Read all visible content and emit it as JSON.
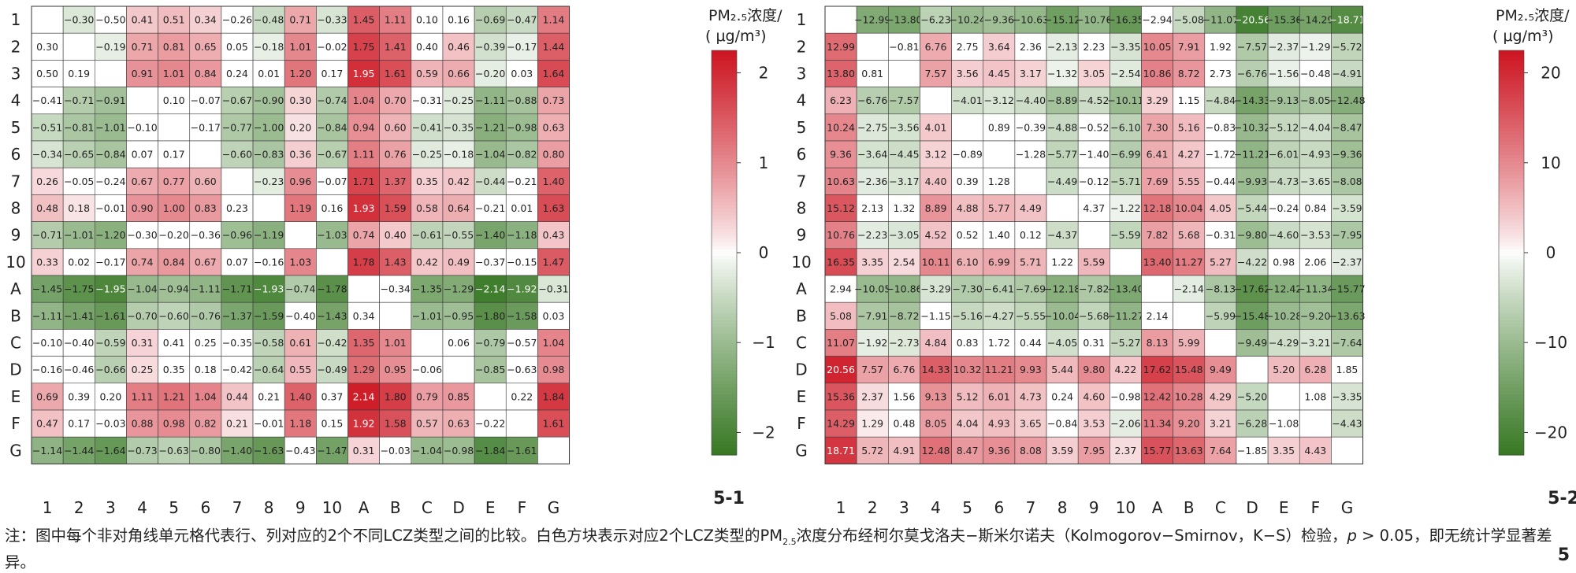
{
  "chart_data": [
    {
      "type": "heatmap",
      "panel_label": "5-1",
      "legend_title": [
        "PM₂.₅浓度/",
        "( μg/m³)"
      ],
      "color_range": [
        -2.25,
        2.25
      ],
      "ticks": [
        "−2",
        "−1",
        "0",
        "1",
        "2"
      ],
      "tick_values": [
        -2,
        -1,
        0,
        1,
        2
      ],
      "row_labels": [
        "1",
        "2",
        "3",
        "4",
        "5",
        "6",
        "7",
        "8",
        "9",
        "10",
        "A",
        "B",
        "C",
        "D",
        "E",
        "F",
        "G"
      ],
      "col_labels": [
        "1",
        "2",
        "3",
        "4",
        "5",
        "6",
        "7",
        "8",
        "9",
        "10",
        "A",
        "B",
        "C",
        "D",
        "E",
        "F",
        "G"
      ],
      "grid_on": true,
      "legend_placement": "right",
      "cells": [
        [
          "",
          "-0.30",
          "-0.50",
          "0.41",
          "0.51",
          "0.34",
          "-0.26",
          "-0.48",
          "0.71",
          "-0.33",
          "1.45",
          "1.11",
          "0.10",
          "0.16",
          "-0.69",
          "-0.47",
          "1.14"
        ],
        [
          "0.30",
          "",
          "-0.19",
          "0.71",
          "0.81",
          "0.65",
          "0.05",
          "-0.18",
          "1.01",
          "-0.02",
          "1.75",
          "1.41",
          "0.40",
          "0.46",
          "-0.39",
          "-0.17",
          "1.44"
        ],
        [
          "0.50",
          "0.19",
          "",
          "0.91",
          "1.01",
          "0.84",
          "0.24",
          "0.01",
          "1.20",
          "0.17",
          "1.95",
          "1.61",
          "0.59",
          "0.66",
          "-0.20",
          "0.03",
          "1.64"
        ],
        [
          "-0.41",
          "-0.71",
          "-0.91",
          "",
          "0.10",
          "-0.07",
          "-0.67",
          "-0.90",
          "0.30",
          "-0.74",
          "1.04",
          "0.70",
          "-0.31",
          "-0.25",
          "-1.11",
          "-0.88",
          "0.73"
        ],
        [
          "-0.51",
          "-0.81",
          "-1.01",
          "-0.10",
          "",
          "-0.17",
          "-0.77",
          "-1.00",
          "0.20",
          "-0.84",
          "0.94",
          "0.60",
          "-0.41",
          "-0.35",
          "-1.21",
          "-0.98",
          "0.63"
        ],
        [
          "-0.34",
          "-0.65",
          "-0.84",
          "0.07",
          "0.17",
          "",
          "-0.60",
          "-0.83",
          "0.36",
          "-0.67",
          "1.11",
          "0.76",
          "-0.25",
          "-0.18",
          "-1.04",
          "-0.82",
          "0.80"
        ],
        [
          "0.26",
          "-0.05",
          "-0.24",
          "0.67",
          "0.77",
          "0.60",
          "",
          "-0.23",
          "0.96",
          "-0.07",
          "1.71",
          "1.37",
          "0.35",
          "0.42",
          "-0.44",
          "-0.21",
          "1.40"
        ],
        [
          "0.48",
          "0.18",
          "-0.01",
          "0.90",
          "1.00",
          "0.83",
          "0.23",
          "",
          "1.19",
          "0.16",
          "1.93",
          "1.59",
          "0.58",
          "0.64",
          "-0.21",
          "0.01",
          "1.63"
        ],
        [
          "-0.71",
          "-1.01",
          "-1.20",
          "-0.30",
          "-0.20",
          "-0.36",
          "-0.96",
          "-1.19",
          "",
          "-1.03",
          "0.74",
          "0.40",
          "-0.61",
          "-0.55",
          "-1.40",
          "-1.18",
          "0.43"
        ],
        [
          "0.33",
          "0.02",
          "-0.17",
          "0.74",
          "0.84",
          "0.67",
          "0.07",
          "-0.16",
          "1.03",
          "",
          "1.78",
          "1.43",
          "0.42",
          "0.49",
          "-0.37",
          "-0.15",
          "1.47"
        ],
        [
          "-1.45",
          "-1.75",
          "-1.95",
          "-1.04",
          "-0.94",
          "-1.11",
          "-1.71",
          "-1.93",
          "-0.74",
          "-1.78",
          "",
          "-0.34",
          "-1.35",
          "-1.29",
          "-2.14",
          "-1.92",
          "-0.31"
        ],
        [
          "-1.11",
          "-1.41",
          "-1.61",
          "-0.70",
          "-0.60",
          "-0.76",
          "-1.37",
          "-1.59",
          "-0.40",
          "-1.43",
          "0.34",
          "",
          "-1.01",
          "-0.95",
          "-1.80",
          "-1.58",
          "0.03"
        ],
        [
          "-0.10",
          "-0.40",
          "-0.59",
          "0.31",
          "0.41",
          "0.25",
          "-0.35",
          "-0.58",
          "0.61",
          "-0.42",
          "1.35",
          "1.01",
          "",
          "0.06",
          "-0.79",
          "-0.57",
          "1.04"
        ],
        [
          "-0.16",
          "-0.46",
          "-0.66",
          "0.25",
          "0.35",
          "0.18",
          "-0.42",
          "-0.64",
          "0.55",
          "-0.49",
          "1.29",
          "0.95",
          "-0.06",
          "",
          "-0.85",
          "-0.63",
          "0.98"
        ],
        [
          "0.69",
          "0.39",
          "0.20",
          "1.11",
          "1.21",
          "1.04",
          "0.44",
          "0.21",
          "1.40",
          "0.37",
          "2.14",
          "1.80",
          "0.79",
          "0.85",
          "",
          "0.22",
          "1.84"
        ],
        [
          "0.47",
          "0.17",
          "-0.03",
          "0.88",
          "0.98",
          "0.82",
          "0.21",
          "-0.01",
          "1.18",
          "0.15",
          "1.92",
          "1.58",
          "0.57",
          "0.63",
          "-0.22",
          "",
          "1.61"
        ],
        [
          "-1.14",
          "-1.44",
          "-1.64",
          "-0.73",
          "-0.63",
          "-0.80",
          "-1.40",
          "-1.63",
          "-0.43",
          "-1.47",
          "0.31",
          "-0.03",
          "-1.04",
          "-0.98",
          "-1.84",
          "-1.61",
          ""
        ]
      ],
      "white_cells": [
        [
          0,
          2
        ],
        [
          0,
          6
        ],
        [
          0,
          12
        ],
        [
          0,
          13
        ],
        [
          1,
          0
        ],
        [
          1,
          6
        ],
        [
          1,
          9
        ],
        [
          1,
          12
        ],
        [
          2,
          0
        ],
        [
          2,
          1
        ],
        [
          2,
          6
        ],
        [
          2,
          7
        ],
        [
          2,
          9
        ],
        [
          2,
          15
        ],
        [
          3,
          0
        ],
        [
          3,
          4
        ],
        [
          3,
          5
        ],
        [
          3,
          12
        ],
        [
          4,
          3
        ],
        [
          4,
          5
        ],
        [
          5,
          3
        ],
        [
          5,
          4
        ],
        [
          6,
          1
        ],
        [
          6,
          2
        ],
        [
          6,
          9
        ],
        [
          6,
          15
        ],
        [
          7,
          2
        ],
        [
          7,
          6
        ],
        [
          7,
          9
        ],
        [
          7,
          14
        ],
        [
          7,
          15
        ],
        [
          8,
          3
        ],
        [
          8,
          4
        ],
        [
          8,
          5
        ],
        [
          9,
          1
        ],
        [
          9,
          2
        ],
        [
          9,
          6
        ],
        [
          9,
          7
        ],
        [
          9,
          14
        ],
        [
          9,
          15
        ],
        [
          10,
          10
        ],
        [
          10,
          11
        ],
        [
          11,
          8
        ],
        [
          11,
          10
        ],
        [
          11,
          16
        ],
        [
          12,
          0
        ],
        [
          12,
          1
        ],
        [
          12,
          4
        ],
        [
          12,
          5
        ],
        [
          12,
          6
        ],
        [
          12,
          13
        ],
        [
          12,
          15
        ],
        [
          13,
          0
        ],
        [
          13,
          1
        ],
        [
          13,
          4
        ],
        [
          13,
          5
        ],
        [
          13,
          6
        ],
        [
          13,
          12
        ],
        [
          13,
          15
        ],
        [
          14,
          1
        ],
        [
          14,
          2
        ],
        [
          14,
          7
        ],
        [
          14,
          9
        ],
        [
          14,
          15
        ],
        [
          15,
          1
        ],
        [
          15,
          2
        ],
        [
          15,
          7
        ],
        [
          15,
          9
        ],
        [
          15,
          14
        ],
        [
          16,
          8
        ],
        [
          16,
          11
        ]
      ]
    },
    {
      "type": "heatmap",
      "panel_label": "5-2",
      "legend_title": [
        "PM₂.₅浓度/",
        "( μg/m³)"
      ],
      "color_range": [
        -22.5,
        22.5
      ],
      "ticks": [
        "−20",
        "−10",
        "0",
        "10",
        "20"
      ],
      "tick_values": [
        -20,
        -10,
        0,
        10,
        20
      ],
      "row_labels": [
        "1",
        "2",
        "3",
        "4",
        "5",
        "6",
        "7",
        "8",
        "9",
        "10",
        "A",
        "B",
        "C",
        "D",
        "E",
        "F",
        "G"
      ],
      "col_labels": [
        "1",
        "2",
        "3",
        "4",
        "5",
        "6",
        "7",
        "8",
        "9",
        "10",
        "A",
        "B",
        "C",
        "D",
        "E",
        "F",
        "G"
      ],
      "grid_on": true,
      "legend_placement": "right",
      "cells": [
        [
          "",
          "-12.99",
          "-13.80",
          "-6.23",
          "-10.24",
          "-9.36",
          "-10.63",
          "-15.12",
          "-10.76",
          "-16.35",
          "-2.94",
          "-5.08",
          "-11.07",
          "-20.56",
          "-15.36",
          "-14.29",
          "-18.71"
        ],
        [
          "12.99",
          "",
          "-0.81",
          "6.76",
          "2.75",
          "3.64",
          "2.36",
          "-2.13",
          "2.23",
          "-3.35",
          "10.05",
          "7.91",
          "1.92",
          "-7.57",
          "-2.37",
          "-1.29",
          "-5.72"
        ],
        [
          "13.80",
          "0.81",
          "",
          "7.57",
          "3.56",
          "4.45",
          "3.17",
          "-1.32",
          "3.05",
          "-2.54",
          "10.86",
          "8.72",
          "2.73",
          "-6.76",
          "-1.56",
          "-0.48",
          "-4.91"
        ],
        [
          "6.23",
          "-6.76",
          "-7.57",
          "",
          "-4.01",
          "-3.12",
          "-4.40",
          "-8.89",
          "-4.52",
          "-10.11",
          "3.29",
          "1.15",
          "-4.84",
          "-14.33",
          "-9.13",
          "-8.05",
          "-12.48"
        ],
        [
          "10.24",
          "-2.75",
          "-3.56",
          "4.01",
          "",
          "0.89",
          "-0.39",
          "-4.88",
          "-0.52",
          "-6.10",
          "7.30",
          "5.16",
          "-0.83",
          "-10.32",
          "-5.12",
          "-4.04",
          "-8.47"
        ],
        [
          "9.36",
          "-3.64",
          "-4.45",
          "3.12",
          "-0.89",
          "",
          "-1.28",
          "-5.77",
          "-1.40",
          "-6.99",
          "6.41",
          "4.27",
          "-1.72",
          "-11.21",
          "-6.01",
          "-4.93",
          "-9.36"
        ],
        [
          "10.63",
          "-2.36",
          "-3.17",
          "4.40",
          "0.39",
          "1.28",
          "",
          "-4.49",
          "-0.12",
          "-5.71",
          "7.69",
          "5.55",
          "-0.44",
          "-9.93",
          "-4.73",
          "-3.65",
          "-8.08"
        ],
        [
          "15.12",
          "2.13",
          "1.32",
          "8.89",
          "4.88",
          "5.77",
          "4.49",
          "",
          "4.37",
          "-1.22",
          "12.18",
          "10.04",
          "4.05",
          "-5.44",
          "-0.24",
          "0.84",
          "-3.59"
        ],
        [
          "10.76",
          "-2.23",
          "-3.05",
          "4.52",
          "0.52",
          "1.40",
          "0.12",
          "-4.37",
          "",
          "-5.59",
          "7.82",
          "5.68",
          "-0.31",
          "-9.80",
          "-4.60",
          "-3.53",
          "-7.95"
        ],
        [
          "16.35",
          "3.35",
          "2.54",
          "10.11",
          "6.10",
          "6.99",
          "5.71",
          "1.22",
          "5.59",
          "",
          "13.40",
          "11.27",
          "5.27",
          "-4.22",
          "0.98",
          "2.06",
          "-2.37"
        ],
        [
          "2.94",
          "-10.05",
          "-10.86",
          "-3.29",
          "-7.30",
          "-6.41",
          "-7.69",
          "-12.18",
          "-7.82",
          "-13.40",
          "",
          "-2.14",
          "-8.13",
          "-17.62",
          "-12.42",
          "-11.34",
          "-15.77"
        ],
        [
          "5.08",
          "-7.91",
          "-8.72",
          "-1.15",
          "-5.16",
          "-4.27",
          "-5.55",
          "-10.04",
          "-5.68",
          "-11.27",
          "2.14",
          "",
          "-5.99",
          "-15.48",
          "-10.28",
          "-9.20",
          "-13.63"
        ],
        [
          "11.07",
          "-1.92",
          "-2.73",
          "4.84",
          "0.83",
          "1.72",
          "0.44",
          "-4.05",
          "0.31",
          "-5.27",
          "8.13",
          "5.99",
          "",
          "-9.49",
          "-4.29",
          "-3.21",
          "-7.64"
        ],
        [
          "20.56",
          "7.57",
          "6.76",
          "14.33",
          "10.32",
          "11.21",
          "9.93",
          "5.44",
          "9.80",
          "4.22",
          "17.62",
          "15.48",
          "9.49",
          "",
          "5.20",
          "6.28",
          "1.85"
        ],
        [
          "15.36",
          "2.37",
          "1.56",
          "9.13",
          "5.12",
          "6.01",
          "4.73",
          "0.24",
          "4.60",
          "-0.98",
          "12.42",
          "10.28",
          "4.29",
          "-5.20",
          "",
          "1.08",
          "-3.35"
        ],
        [
          "14.29",
          "1.29",
          "0.48",
          "8.05",
          "4.04",
          "4.93",
          "3.65",
          "-0.84",
          "3.53",
          "-2.06",
          "11.34",
          "9.20",
          "3.21",
          "-6.28",
          "-1.08",
          "",
          "-4.43"
        ],
        [
          "18.71",
          "5.72",
          "4.91",
          "12.48",
          "8.47",
          "9.36",
          "8.08",
          "3.59",
          "7.95",
          "2.37",
          "15.77",
          "13.63",
          "7.64",
          "-1.85",
          "3.35",
          "4.43",
          ""
        ]
      ],
      "white_cells": [
        [
          0,
          10
        ],
        [
          1,
          2
        ],
        [
          1,
          4
        ],
        [
          1,
          6
        ],
        [
          1,
          8
        ],
        [
          1,
          12
        ],
        [
          2,
          1
        ],
        [
          2,
          12
        ],
        [
          2,
          15
        ],
        [
          3,
          11
        ],
        [
          4,
          5
        ],
        [
          4,
          6
        ],
        [
          4,
          8
        ],
        [
          4,
          12
        ],
        [
          5,
          4
        ],
        [
          5,
          6
        ],
        [
          5,
          8
        ],
        [
          5,
          12
        ],
        [
          6,
          4
        ],
        [
          6,
          5
        ],
        [
          6,
          8
        ],
        [
          6,
          12
        ],
        [
          7,
          1
        ],
        [
          7,
          2
        ],
        [
          7,
          8
        ],
        [
          7,
          14
        ],
        [
          7,
          15
        ],
        [
          8,
          4
        ],
        [
          8,
          5
        ],
        [
          8,
          6
        ],
        [
          8,
          12
        ],
        [
          9,
          7
        ],
        [
          9,
          14
        ],
        [
          9,
          15
        ],
        [
          10,
          0
        ],
        [
          11,
          3
        ],
        [
          11,
          10
        ],
        [
          12,
          4
        ],
        [
          12,
          5
        ],
        [
          12,
          6
        ],
        [
          12,
          8
        ],
        [
          13,
          16
        ],
        [
          14,
          2
        ],
        [
          14,
          7
        ],
        [
          14,
          9
        ],
        [
          14,
          15
        ],
        [
          15,
          2
        ],
        [
          15,
          7
        ],
        [
          15,
          14
        ],
        [
          16,
          13
        ]
      ]
    }
  ],
  "footnote": {
    "t1": "注：图中每个非对角线单元格代表行、列对应的2个不同LCZ类型之间的比较。白色方块表示对应2个LCZ类型的PM",
    "sub": "2.5",
    "t2": "浓度分布经柯尔莫戈洛夫−斯米尔诺夫（Kolmogorov−Smirnov，K−S）检验，",
    "p": "p",
    "t3": " > 0.05，即无统计学显著差异。"
  },
  "page_number": "5"
}
